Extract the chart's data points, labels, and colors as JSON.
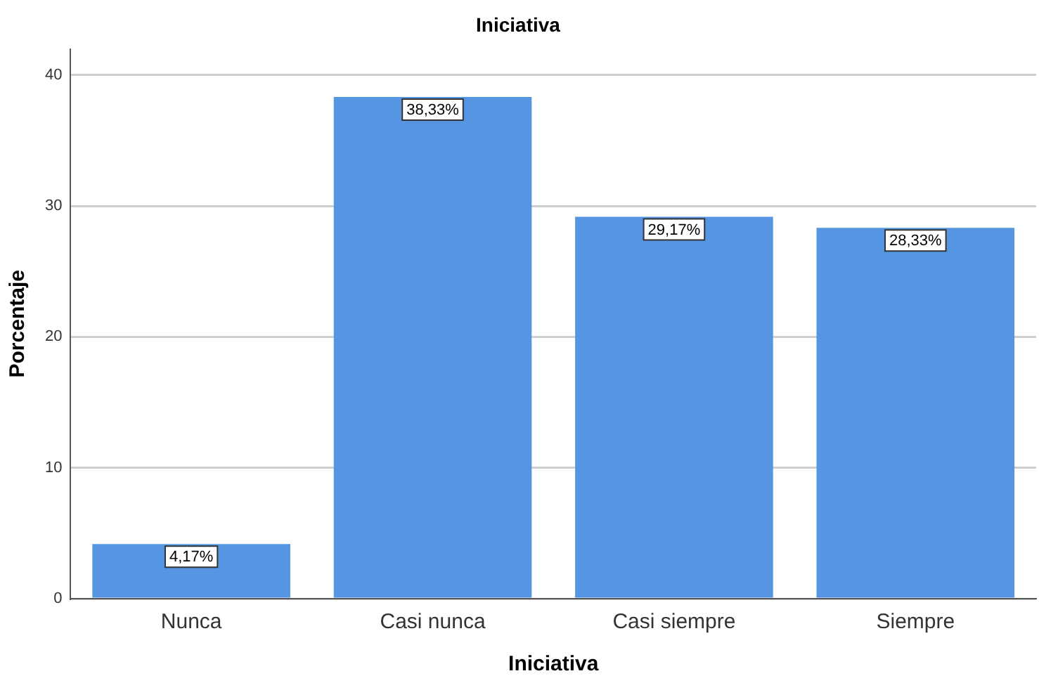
{
  "chart_data": {
    "type": "bar",
    "title": "Iniciativa",
    "xlabel": "Iniciativa",
    "ylabel": "Porcentaje",
    "categories": [
      "Nunca",
      "Casi nunca",
      "Casi siempre",
      "Siempre"
    ],
    "values": [
      4.17,
      38.33,
      29.17,
      28.33
    ],
    "value_labels": [
      "4,17%",
      "38,33%",
      "29,17%",
      "28,33%"
    ],
    "color": "#5595e2",
    "ylim": [
      0,
      42
    ],
    "yticks": [
      0,
      10,
      20,
      30,
      40
    ],
    "grid": "y",
    "legend": false
  }
}
